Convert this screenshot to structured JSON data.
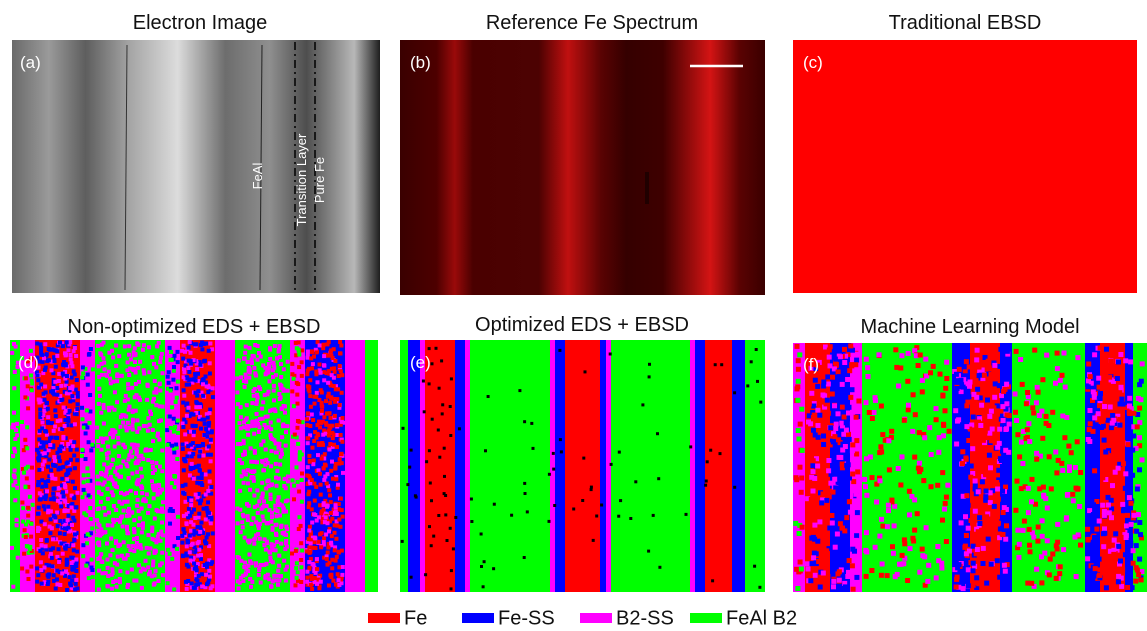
{
  "panels": [
    {
      "title": "Electron Image",
      "label": "(a)",
      "annotations": [
        "FeAl",
        "Transition Layer",
        "Pure Fe"
      ]
    },
    {
      "title": "Reference Fe Spectrum",
      "label": "(b)"
    },
    {
      "title": "Traditional EBSD",
      "label": "(c)"
    },
    {
      "title": "Non-optimized EDS + EBSD",
      "label": "(d)"
    },
    {
      "title": "Optimized EDS + EBSD",
      "label": "(e)"
    },
    {
      "title": "Machine Learning Model",
      "label": "(f)"
    }
  ],
  "legend": [
    {
      "name": "Fe",
      "color": "#ff0000"
    },
    {
      "name": "Fe-SS",
      "color": "#0000ff"
    },
    {
      "name": "B2-SS",
      "color": "#ff00ff"
    },
    {
      "name": "FeAl B2",
      "color": "#00ff00"
    }
  ]
}
